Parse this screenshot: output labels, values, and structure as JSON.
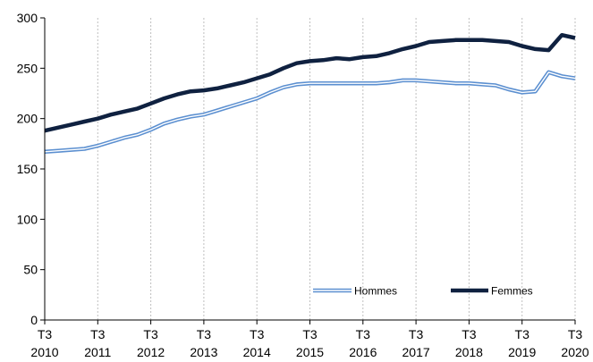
{
  "chart_data": {
    "type": "line",
    "title": "",
    "xlabel": "",
    "ylabel": "",
    "ylim": [
      0,
      300
    ],
    "y_ticks": [
      "0",
      "50",
      "100",
      "150",
      "200",
      "250",
      "300"
    ],
    "x_tick_labels": [
      {
        "quarter": "T3",
        "year": "2010"
      },
      {
        "quarter": "T3",
        "year": "2011"
      },
      {
        "quarter": "T3",
        "year": "2012"
      },
      {
        "quarter": "T3",
        "year": "2013"
      },
      {
        "quarter": "T3",
        "year": "2014"
      },
      {
        "quarter": "T3",
        "year": "2015"
      },
      {
        "quarter": "T3",
        "year": "2016"
      },
      {
        "quarter": "T3",
        "year": "2017"
      },
      {
        "quarter": "T3",
        "year": "2018"
      },
      {
        "quarter": "T3",
        "year": "2019"
      },
      {
        "quarter": "T3",
        "year": "2020"
      }
    ],
    "x": [
      "2010 T3",
      "2010 T4",
      "2011 T1",
      "2011 T2",
      "2011 T3",
      "2011 T4",
      "2012 T1",
      "2012 T2",
      "2012 T3",
      "2012 T4",
      "2013 T1",
      "2013 T2",
      "2013 T3",
      "2013 T4",
      "2014 T1",
      "2014 T2",
      "2014 T3",
      "2014 T4",
      "2015 T1",
      "2015 T2",
      "2015 T3",
      "2015 T4",
      "2016 T1",
      "2016 T2",
      "2016 T3",
      "2016 T4",
      "2017 T1",
      "2017 T2",
      "2017 T3",
      "2017 T4",
      "2018 T1",
      "2018 T2",
      "2018 T3",
      "2018 T4",
      "2019 T1",
      "2019 T2",
      "2019 T3",
      "2019 T4",
      "2020 T1",
      "2020 T2",
      "2020 T3"
    ],
    "grid": {
      "vertical": "dotted",
      "horizontal": false
    },
    "legend": {
      "placement": "bottom-right"
    },
    "series": [
      {
        "name": "Hommes",
        "style": "double-line",
        "color": "#5b8fd0",
        "values": [
          167,
          168,
          169,
          170,
          173,
          177,
          181,
          184,
          189,
          195,
          199,
          202,
          204,
          208,
          212,
          216,
          220,
          226,
          231,
          234,
          235,
          235,
          235,
          235,
          235,
          235,
          236,
          238,
          238,
          237,
          236,
          235,
          235,
          234,
          233,
          229,
          226,
          227,
          246,
          242,
          240
        ]
      },
      {
        "name": "Femmes",
        "style": "thick",
        "color": "#0f2140",
        "values": [
          188,
          191,
          194,
          197,
          200,
          204,
          207,
          210,
          215,
          220,
          224,
          227,
          228,
          230,
          233,
          236,
          240,
          244,
          250,
          255,
          257,
          258,
          260,
          259,
          261,
          262,
          265,
          269,
          272,
          276,
          277,
          278,
          278,
          278,
          277,
          276,
          272,
          269,
          268,
          283,
          280
        ]
      }
    ]
  },
  "colors": {
    "axis": "#000000",
    "grid": "#bfbfbf",
    "hommes_outer": "#5b8fd0",
    "hommes_inner": "#ffffff",
    "femmes": "#0f2140"
  }
}
